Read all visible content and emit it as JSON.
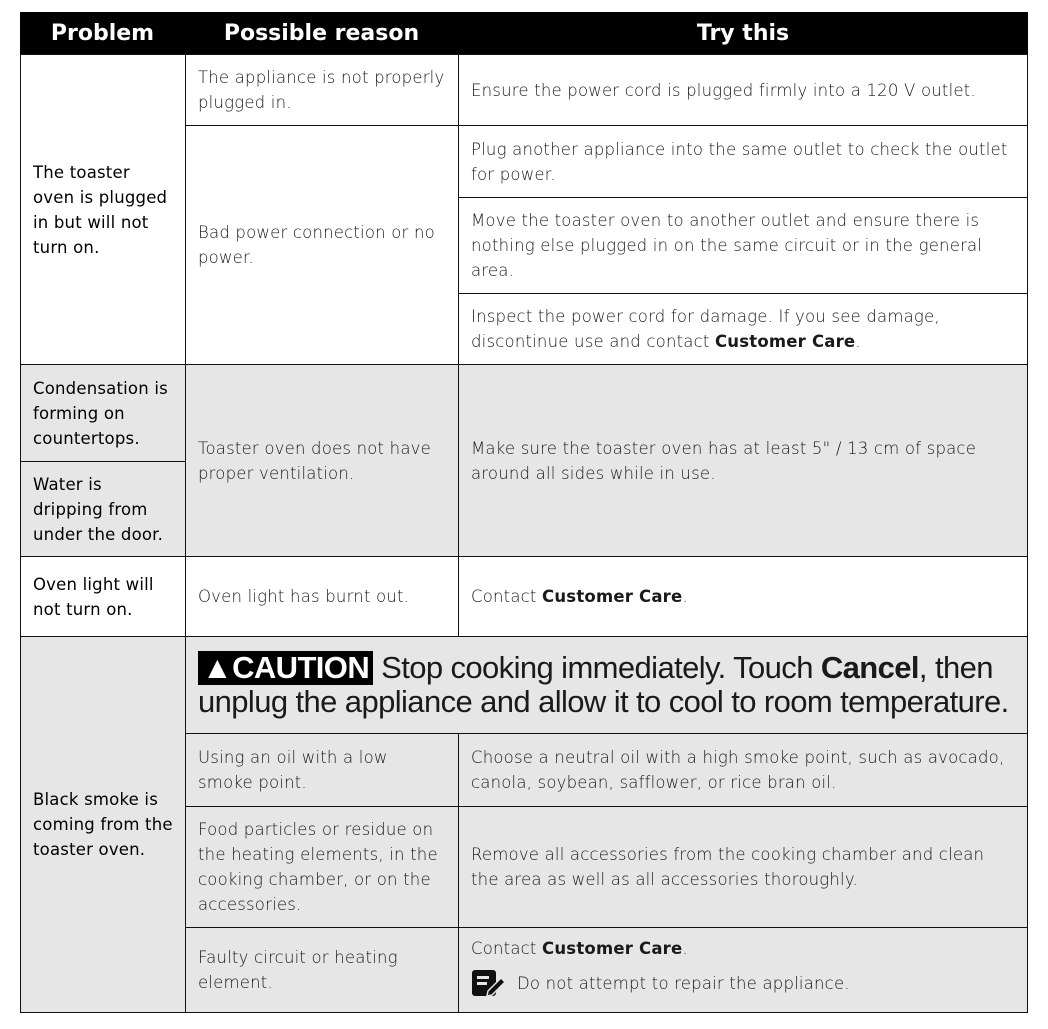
{
  "header": {
    "problem": "Problem",
    "reason": "Possible reason",
    "try": "Try this"
  },
  "group1": {
    "problem": "The toaster oven is plugged in but will not turn on.",
    "reason1": "The appliance is not properly plugged in.",
    "try1": "Ensure the power cord is plugged firmly into a 120 V outlet.",
    "reason2": "Bad power connection or no power.",
    "try2": "Plug another appliance into the same outlet to check the outlet for power.",
    "try3": "Move the toaster oven to another outlet and ensure there is nothing else plugged in on the same circuit or in the general area.",
    "try4_pre": "Inspect the power cord for damage. If you see damage, discontinue use and contact ",
    "try4_bold": "Customer Care",
    "try4_post": "."
  },
  "group2": {
    "problem1": "Condensation is forming on countertops.",
    "problem2": "Water is dripping from under the door.",
    "reason": "Toaster oven does not have proper ventilation.",
    "try": "Make sure the toaster oven has at least 5\" / 13 cm of space around all sides while in use."
  },
  "group3": {
    "problem": "Oven light will not turn on.",
    "reason": "Oven light has burnt out.",
    "try_pre": "Contact ",
    "try_bold": "Customer Care",
    "try_post": "."
  },
  "group4": {
    "problem": "Black smoke is coming from the toaster oven.",
    "caution": {
      "badge": "CAUTION",
      "icon": "warning-triangle-icon",
      "text1": " Stop cooking immediately. Touch ",
      "bold": "Cancel",
      "text2": ", then unplug the appliance and allow it to cool to room temperature."
    },
    "reason1": "Using an oil with a low smoke point.",
    "try1": "Choose a neutral oil with a high smoke point, such as avocado, canola, soybean, safflower, or rice bran oil.",
    "reason2": "Food particles or residue on the heating elements, in the cooking chamber, or on the accessories.",
    "try2": "Remove all accessories from the cooking chamber and clean the area as well as all accessories thoroughly.",
    "reason3": "Faulty circuit or heating element.",
    "try3_pre": "Contact ",
    "try3_bold": "Customer Care",
    "try3_post": ".",
    "note": "Do not attempt to repair the appliance.",
    "note_icon": "note-pencil-icon"
  }
}
